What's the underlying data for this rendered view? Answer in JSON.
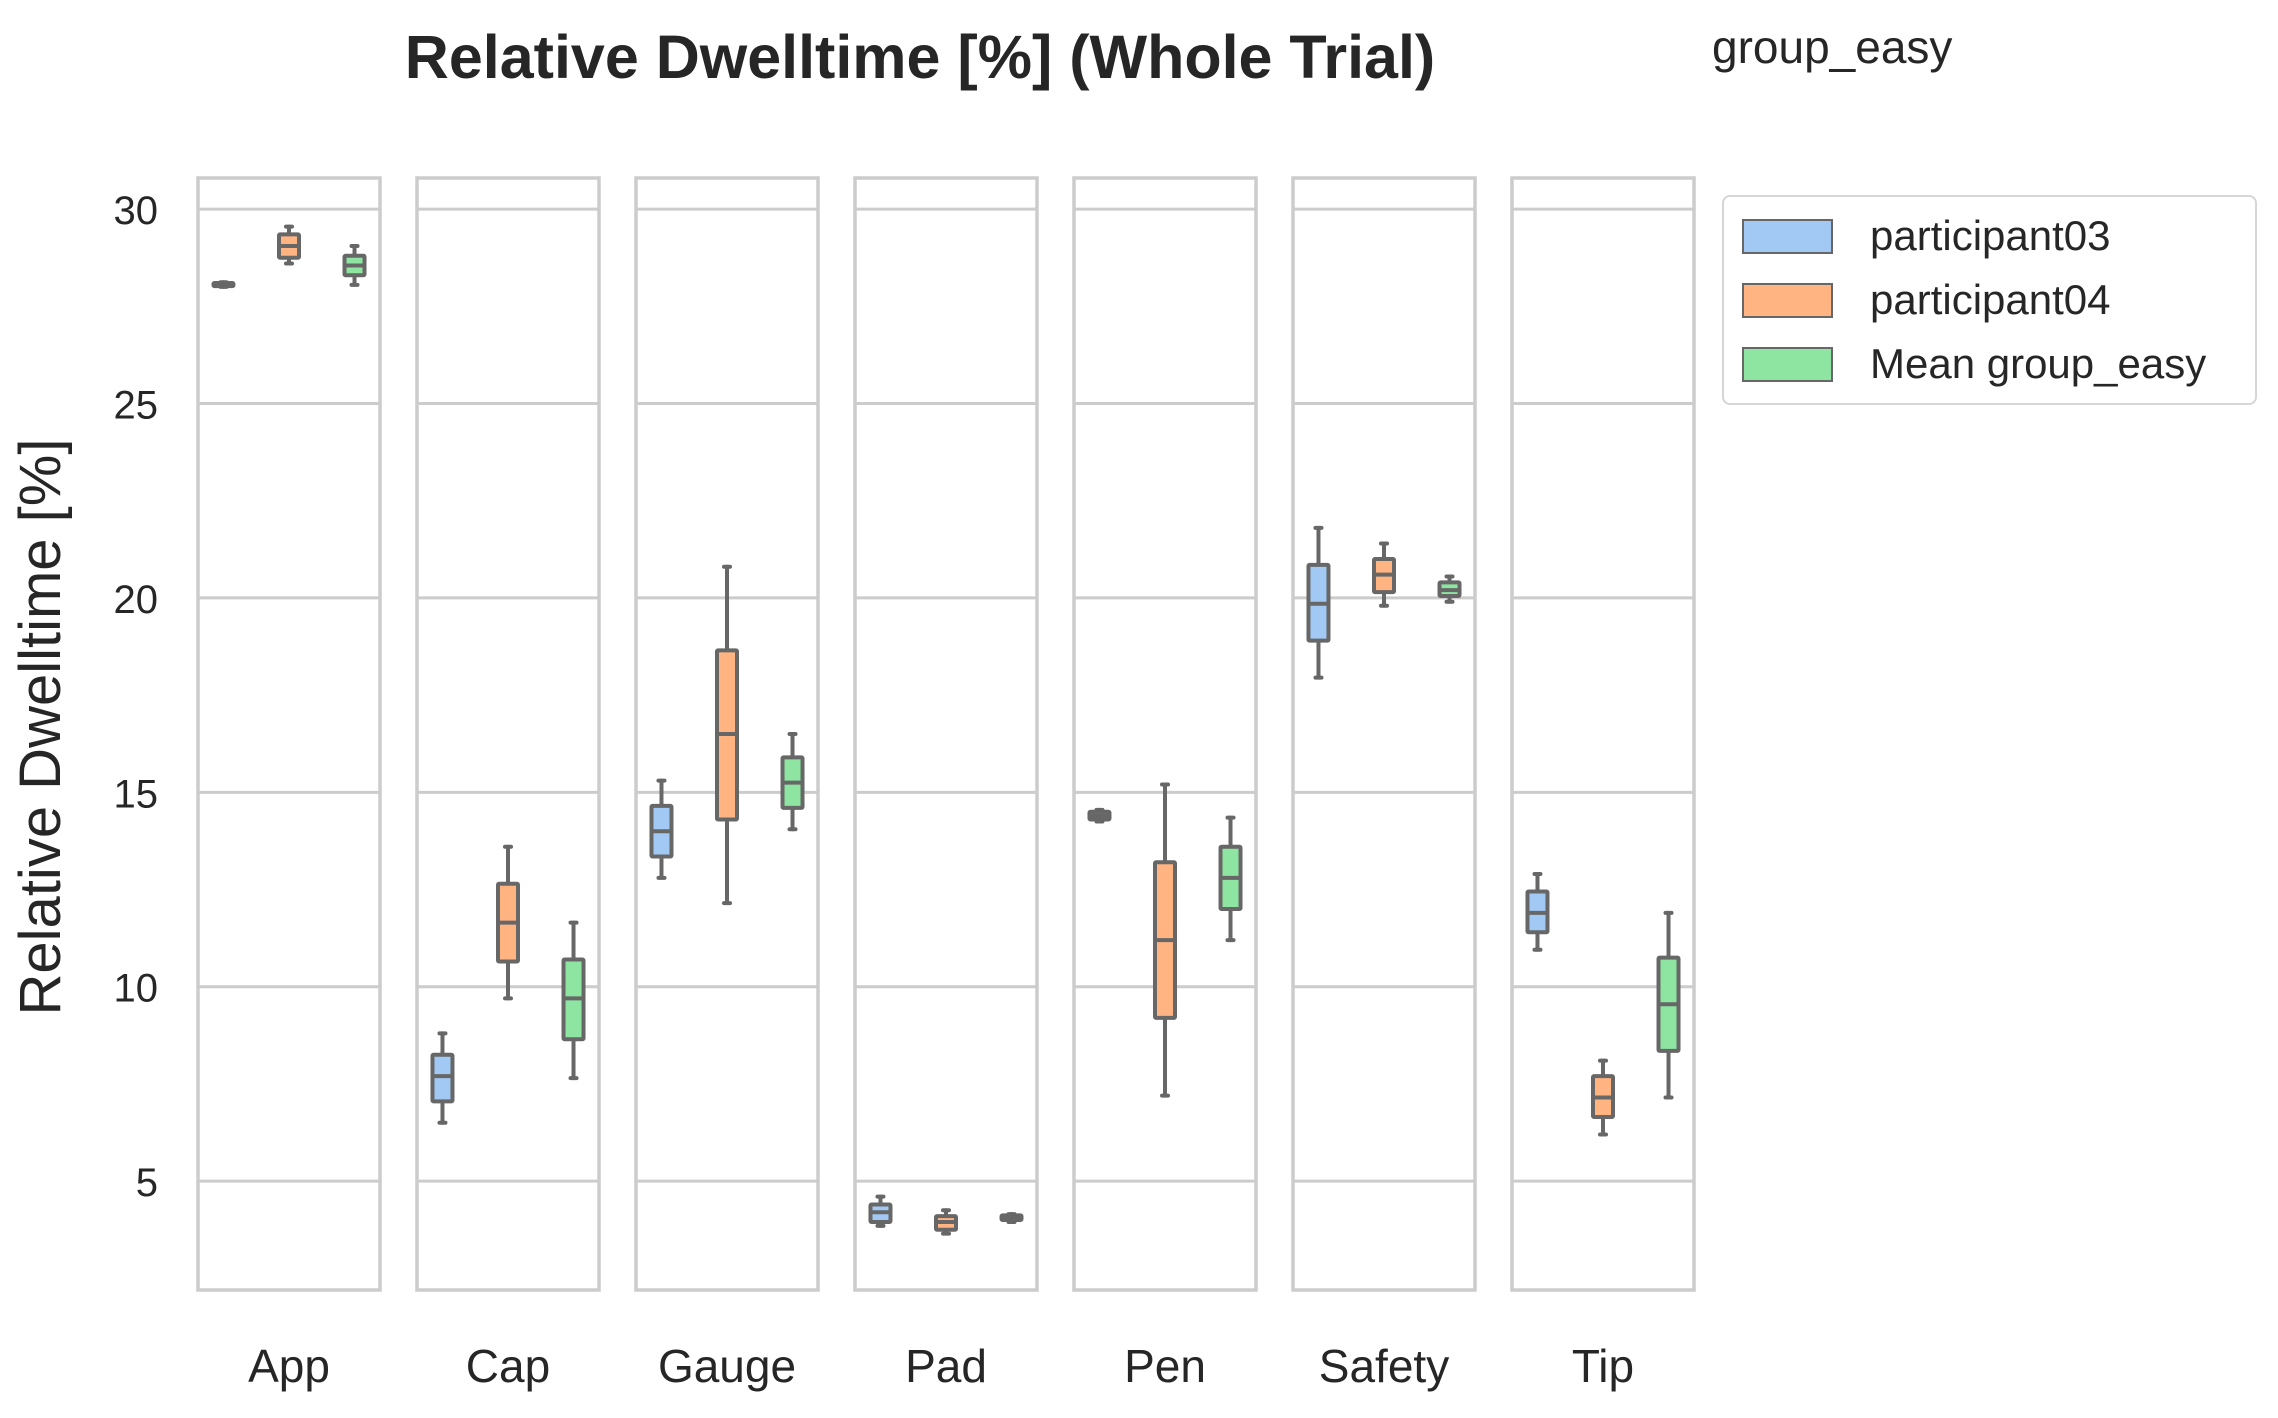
{
  "chart_data": {
    "type": "box",
    "title": "Relative Dwelltime [%] (Whole Trial)",
    "subtitle": "group_easy",
    "ylabel": "Relative Dwelltime [%]",
    "xlabel": "",
    "ylim": [
      2.2,
      30.8
    ],
    "yticks": [
      5,
      10,
      15,
      20,
      25,
      30
    ],
    "grid": true,
    "legend_placement": "outside-top-right",
    "categories": [
      "App",
      "Cap",
      "Gauge",
      "Pad",
      "Pen",
      "Safety",
      "Tip"
    ],
    "series": [
      {
        "name": "participant03",
        "color": "#a1c9f4",
        "boxes": [
          {
            "min": 28.0,
            "q1": 28.02,
            "median": 28.05,
            "q3": 28.1,
            "max": 28.12
          },
          {
            "min": 6.5,
            "q1": 7.05,
            "median": 7.7,
            "q3": 8.25,
            "max": 8.8
          },
          {
            "min": 12.8,
            "q1": 13.35,
            "median": 14.0,
            "q3": 14.65,
            "max": 15.3
          },
          {
            "min": 3.85,
            "q1": 3.95,
            "median": 4.2,
            "q3": 4.4,
            "max": 4.6
          },
          {
            "min": 14.25,
            "q1": 14.3,
            "median": 14.4,
            "q3": 14.5,
            "max": 14.55
          },
          {
            "min": 17.95,
            "q1": 18.9,
            "median": 19.85,
            "q3": 20.85,
            "max": 21.8
          },
          {
            "min": 10.95,
            "q1": 11.4,
            "median": 11.9,
            "q3": 12.45,
            "max": 12.9
          }
        ]
      },
      {
        "name": "participant04",
        "color": "#ffb482",
        "boxes": [
          {
            "min": 28.6,
            "q1": 28.75,
            "median": 29.05,
            "q3": 29.35,
            "max": 29.55
          },
          {
            "min": 9.7,
            "q1": 10.65,
            "median": 11.65,
            "q3": 12.65,
            "max": 13.6
          },
          {
            "min": 12.15,
            "q1": 14.3,
            "median": 16.5,
            "q3": 18.65,
            "max": 20.8
          },
          {
            "min": 3.65,
            "q1": 3.75,
            "median": 3.95,
            "q3": 4.1,
            "max": 4.25
          },
          {
            "min": 7.2,
            "q1": 9.2,
            "median": 11.2,
            "q3": 13.2,
            "max": 15.2
          },
          {
            "min": 19.8,
            "q1": 20.15,
            "median": 20.6,
            "q3": 21.0,
            "max": 21.4
          },
          {
            "min": 6.2,
            "q1": 6.65,
            "median": 7.15,
            "q3": 7.7,
            "max": 8.1
          }
        ]
      },
      {
        "name": "Mean group_easy",
        "color": "#8de5a1",
        "boxes": [
          {
            "min": 28.05,
            "q1": 28.3,
            "median": 28.55,
            "q3": 28.8,
            "max": 29.05
          },
          {
            "min": 7.65,
            "q1": 8.65,
            "median": 9.7,
            "q3": 10.7,
            "max": 11.65
          },
          {
            "min": 14.05,
            "q1": 14.6,
            "median": 15.25,
            "q3": 15.9,
            "max": 16.5
          },
          {
            "min": 3.95,
            "q1": 4.0,
            "median": 4.05,
            "q3": 4.12,
            "max": 4.15
          },
          {
            "min": 11.2,
            "q1": 12.0,
            "median": 12.8,
            "q3": 13.6,
            "max": 14.35
          },
          {
            "min": 19.9,
            "q1": 20.05,
            "median": 20.2,
            "q3": 20.4,
            "max": 20.55
          },
          {
            "min": 7.15,
            "q1": 8.35,
            "median": 9.55,
            "q3": 10.75,
            "max": 11.9
          }
        ]
      }
    ],
    "style": {
      "frame_color": "#cccccc",
      "grid_color": "#cccccc",
      "box_edge_color": "#676767",
      "text_color": "#262626"
    }
  }
}
